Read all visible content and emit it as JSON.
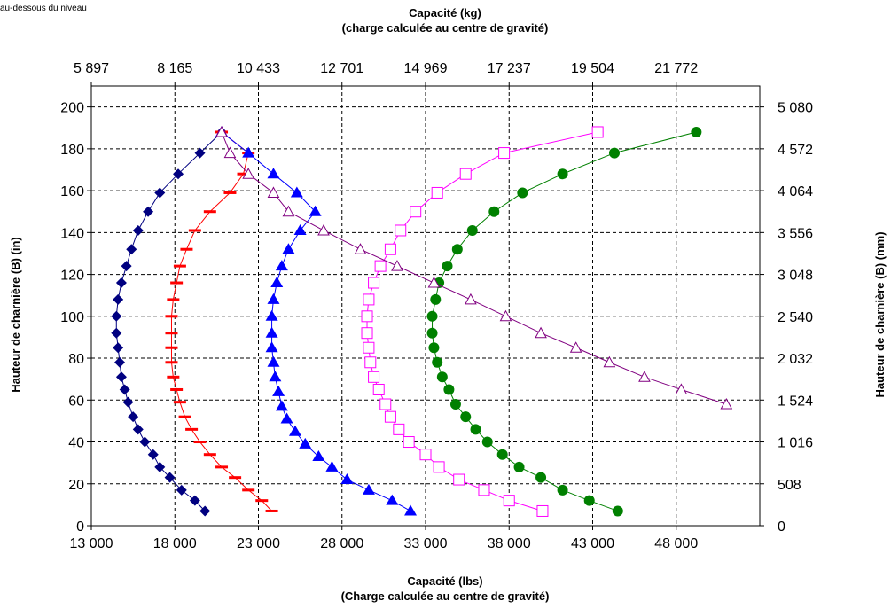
{
  "corner_note": "au-dessous du niveau",
  "chart_data": {
    "type": "scatter",
    "title_top": [
      "Capacité (kg)",
      "(charge calculée au centre de gravité)"
    ],
    "xlabel": [
      "Capacité (lbs)",
      "(Charge calculée au centre de gravité)"
    ],
    "ylabel_left": "Hauteur de charnière (B) (in)",
    "ylabel_right": "Hauteur de charnière (B) (mm)",
    "xlim": [
      13000,
      53000
    ],
    "ylim": [
      0,
      210
    ],
    "grid": true,
    "x_ticks_bottom": [
      "13 000",
      "18 000",
      "23 000",
      "28 000",
      "33 000",
      "38 000",
      "43 000",
      "48 000"
    ],
    "x_ticks_top": [
      "5 897",
      "8 165",
      "10 433",
      "12 701",
      "14 969",
      "17 237",
      "19 504",
      "21 772"
    ],
    "y_ticks_left": [
      "0",
      "20",
      "40",
      "60",
      "80",
      "100",
      "120",
      "140",
      "160",
      "180",
      "200"
    ],
    "y_ticks_right": [
      "0",
      "508",
      "1 016",
      "1 524",
      "2 032",
      "2 540",
      "3 048",
      "3 556",
      "4 064",
      "4 572",
      "5 080"
    ],
    "series": [
      {
        "color": "#000080",
        "marker": "diamond",
        "points": [
          [
            19800,
            7
          ],
          [
            19200,
            12
          ],
          [
            18400,
            17
          ],
          [
            17700,
            23
          ],
          [
            17100,
            28
          ],
          [
            16700,
            34
          ],
          [
            16200,
            40
          ],
          [
            15800,
            46
          ],
          [
            15500,
            52
          ],
          [
            15200,
            59
          ],
          [
            15000,
            65
          ],
          [
            14800,
            71
          ],
          [
            14700,
            78
          ],
          [
            14600,
            85
          ],
          [
            14500,
            92
          ],
          [
            14500,
            100
          ],
          [
            14600,
            108
          ],
          [
            14800,
            116
          ],
          [
            15100,
            124
          ],
          [
            15400,
            132
          ],
          [
            15800,
            141
          ],
          [
            16400,
            150
          ],
          [
            17100,
            159
          ],
          [
            18200,
            168
          ],
          [
            19500,
            178
          ],
          [
            20800,
            188
          ]
        ]
      },
      {
        "color": "#ff0000",
        "marker": "dash",
        "points": [
          [
            23800,
            7
          ],
          [
            23200,
            12
          ],
          [
            22400,
            17
          ],
          [
            21600,
            23
          ],
          [
            20800,
            28
          ],
          [
            20100,
            34
          ],
          [
            19500,
            40
          ],
          [
            19000,
            46
          ],
          [
            18600,
            52
          ],
          [
            18300,
            59
          ],
          [
            18100,
            65
          ],
          [
            17900,
            71
          ],
          [
            17800,
            78
          ],
          [
            17800,
            85
          ],
          [
            17800,
            92
          ],
          [
            17800,
            100
          ],
          [
            17900,
            108
          ],
          [
            18100,
            116
          ],
          [
            18300,
            124
          ],
          [
            18700,
            132
          ],
          [
            19200,
            141
          ],
          [
            20100,
            150
          ],
          [
            21300,
            159
          ],
          [
            22100,
            168
          ],
          [
            22400,
            178
          ],
          [
            20800,
            188
          ]
        ]
      },
      {
        "color": "#0000ff",
        "marker": "triangle",
        "points": [
          [
            32100,
            7
          ],
          [
            31000,
            12
          ],
          [
            29600,
            17
          ],
          [
            28300,
            22
          ],
          [
            27400,
            28
          ],
          [
            26600,
            33
          ],
          [
            25800,
            39
          ],
          [
            25200,
            45
          ],
          [
            24700,
            51
          ],
          [
            24400,
            57
          ],
          [
            24200,
            64
          ],
          [
            24000,
            71
          ],
          [
            23900,
            78
          ],
          [
            23800,
            85
          ],
          [
            23800,
            92
          ],
          [
            23800,
            100
          ],
          [
            23900,
            108
          ],
          [
            24100,
            116
          ],
          [
            24400,
            124
          ],
          [
            24800,
            132
          ],
          [
            25500,
            141
          ],
          [
            26400,
            150
          ],
          [
            25300,
            159
          ],
          [
            23900,
            168
          ],
          [
            22400,
            178
          ],
          [
            20800,
            188
          ]
        ]
      },
      {
        "color": "#ff00ff",
        "marker": "square",
        "points": [
          [
            40000,
            7
          ],
          [
            38000,
            12
          ],
          [
            36500,
            17
          ],
          [
            35000,
            22
          ],
          [
            33800,
            28
          ],
          [
            33000,
            34
          ],
          [
            32000,
            40
          ],
          [
            31400,
            46
          ],
          [
            30900,
            52
          ],
          [
            30600,
            58
          ],
          [
            30200,
            65
          ],
          [
            29900,
            71
          ],
          [
            29700,
            78
          ],
          [
            29600,
            85
          ],
          [
            29500,
            92
          ],
          [
            29500,
            100
          ],
          [
            29600,
            108
          ],
          [
            29900,
            116
          ],
          [
            30300,
            124
          ],
          [
            30900,
            132
          ],
          [
            31500,
            141
          ],
          [
            32400,
            150
          ],
          [
            33700,
            159
          ],
          [
            35400,
            168
          ],
          [
            37700,
            178
          ],
          [
            43300,
            188
          ]
        ]
      },
      {
        "color": "#008000",
        "marker": "circle",
        "points": [
          [
            44500,
            7
          ],
          [
            42800,
            12
          ],
          [
            41200,
            17
          ],
          [
            39900,
            23
          ],
          [
            38600,
            28
          ],
          [
            37600,
            34
          ],
          [
            36700,
            40
          ],
          [
            36000,
            46
          ],
          [
            35400,
            52
          ],
          [
            34800,
            58
          ],
          [
            34400,
            65
          ],
          [
            34000,
            71
          ],
          [
            33700,
            78
          ],
          [
            33500,
            85
          ],
          [
            33400,
            92
          ],
          [
            33400,
            100
          ],
          [
            33600,
            108
          ],
          [
            33800,
            116
          ],
          [
            34300,
            124
          ],
          [
            34900,
            132
          ],
          [
            35800,
            141
          ],
          [
            37100,
            150
          ],
          [
            38800,
            159
          ],
          [
            41200,
            168
          ],
          [
            44300,
            178
          ],
          [
            49200,
            188
          ]
        ]
      },
      {
        "color": "#800080",
        "marker": "triangle-open",
        "points": [
          [
            51000,
            58
          ],
          [
            48300,
            65
          ],
          [
            46100,
            71
          ],
          [
            44000,
            78
          ],
          [
            42000,
            85
          ],
          [
            39900,
            92
          ],
          [
            37800,
            100
          ],
          [
            35700,
            108
          ],
          [
            33500,
            116
          ],
          [
            31300,
            124
          ],
          [
            29100,
            132
          ],
          [
            26900,
            141
          ],
          [
            24800,
            150
          ],
          [
            23900,
            159
          ],
          [
            22400,
            168
          ],
          [
            21300,
            178
          ],
          [
            20800,
            188
          ]
        ]
      }
    ]
  }
}
